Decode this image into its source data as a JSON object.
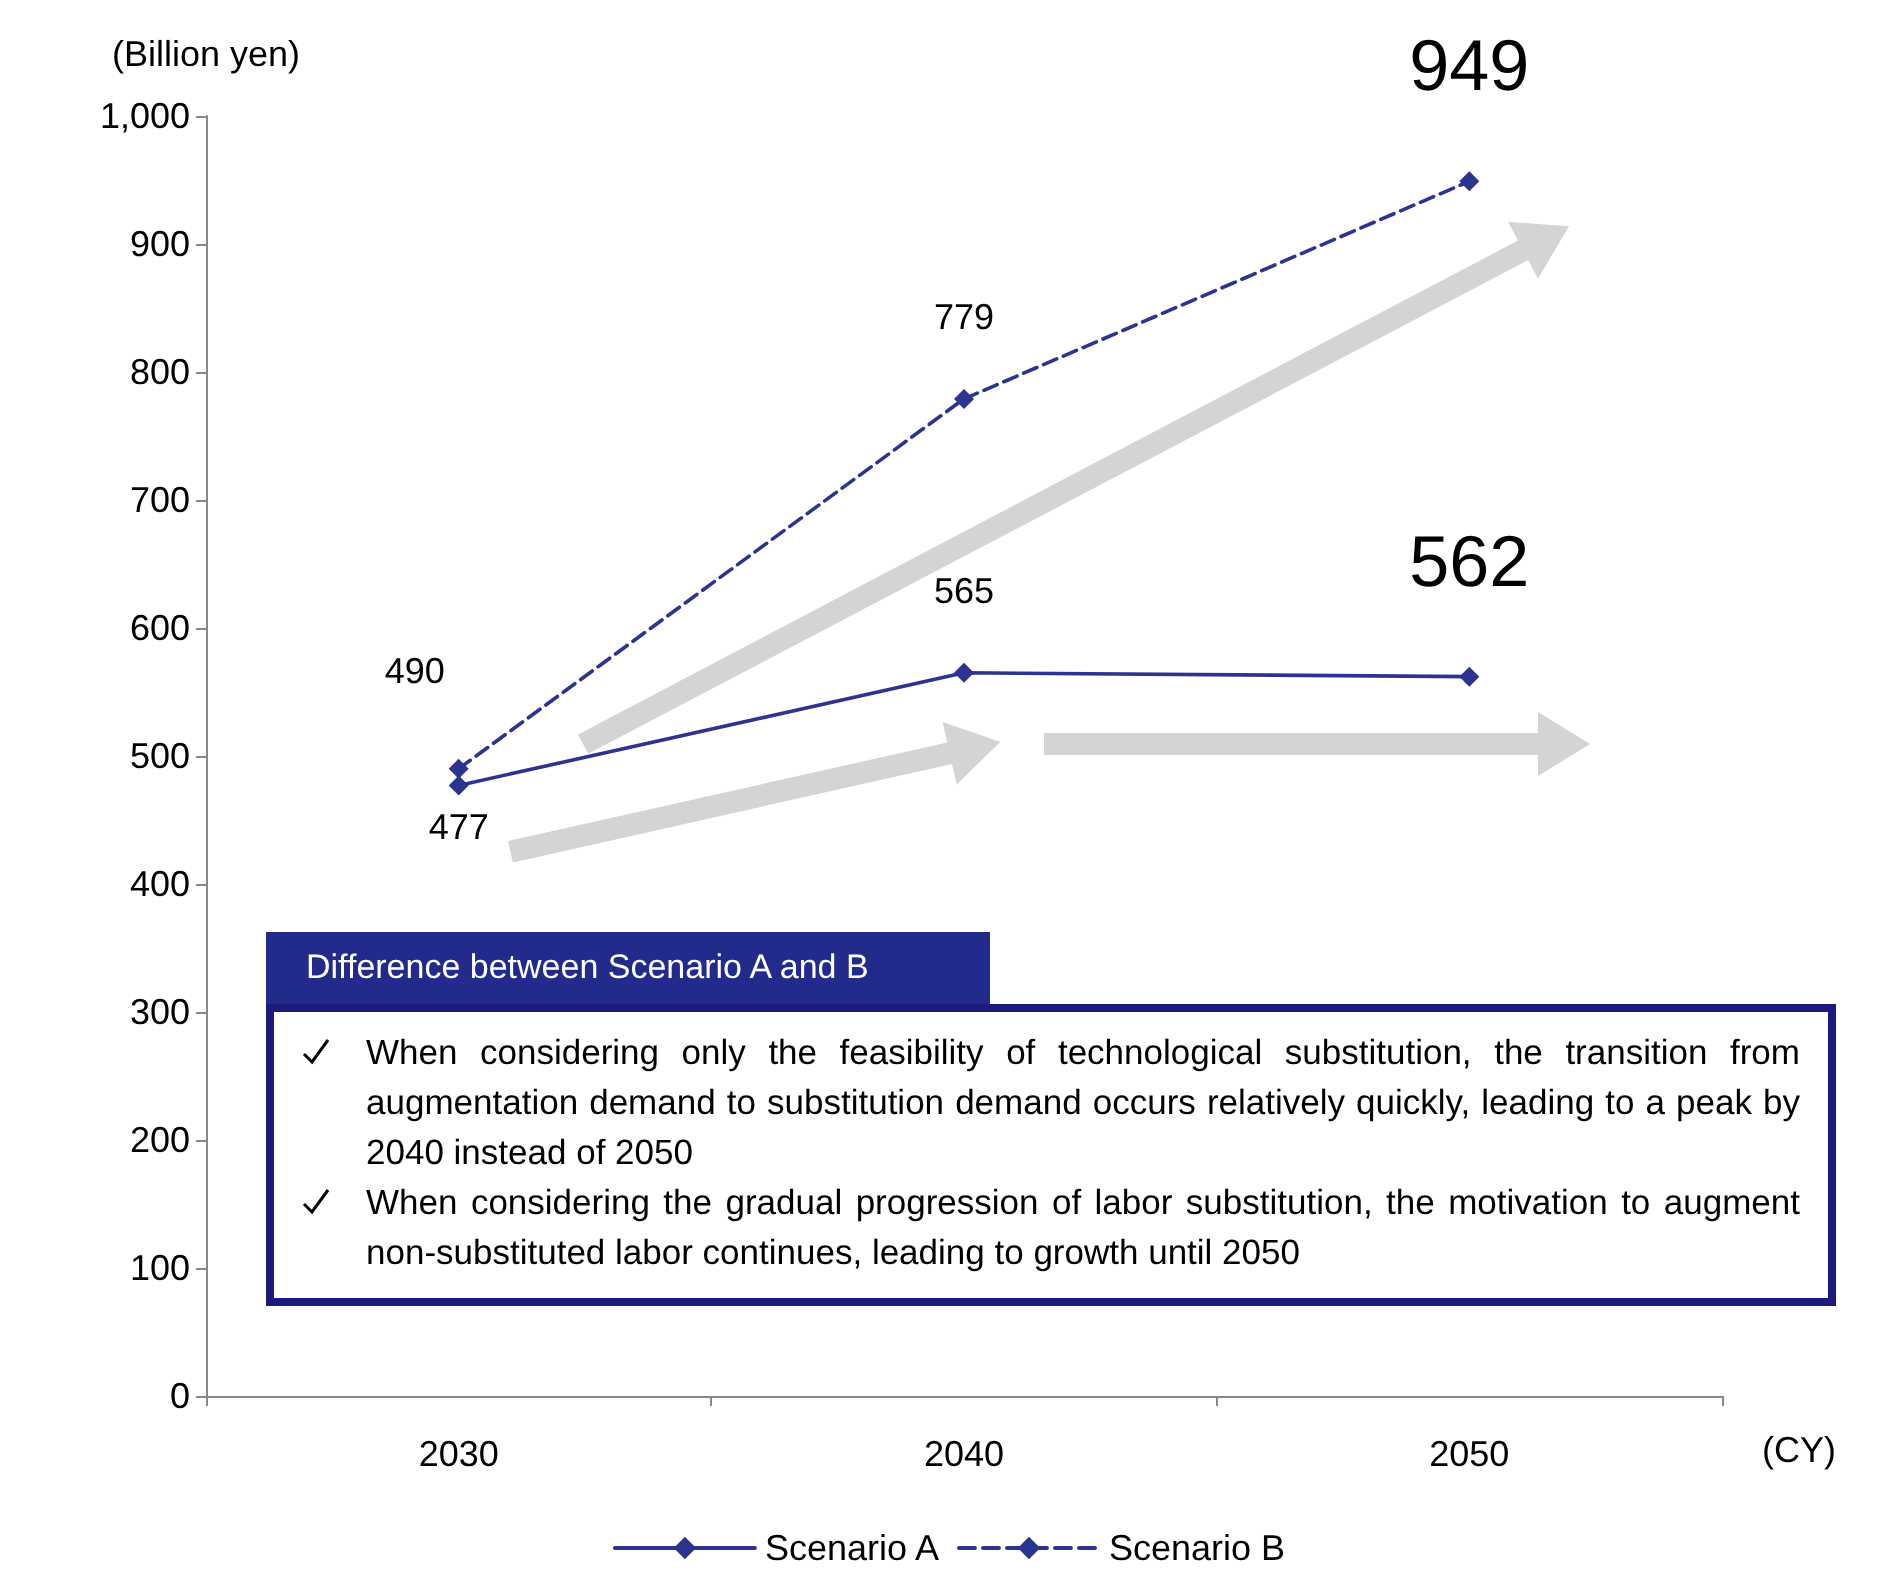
{
  "chart_data": {
    "type": "line",
    "ylabel": "(Billion yen)",
    "xlabel": "(CY)",
    "categories": [
      "2030",
      "2040",
      "2050"
    ],
    "series": [
      {
        "name": "Scenario A",
        "color": "#2b3590",
        "values": [
          477,
          565,
          562
        ],
        "line_style": "solid"
      },
      {
        "name": "Scenario B",
        "color": "#2b3590",
        "values": [
          490,
          779,
          949
        ],
        "line_style": "dashed"
      }
    ],
    "ylim": [
      0,
      1000
    ],
    "yticks": [
      0,
      100,
      200,
      300,
      400,
      500,
      600,
      700,
      800,
      900,
      {
        "value": 1000,
        "label": "1,000"
      }
    ],
    "grid": false,
    "legend": "bottom",
    "marker": "diamond",
    "data_labels": true,
    "annotations": [
      "Difference between Scenario A and B",
      "When considering only the feasibility of technological substitution, the transition from augmentation demand to substitution demand occurs relatively quickly, leading to a peak by 2040 instead of 2050",
      "When considering the gradual progression of labor substitution, the motivation to augment non-substituted labor continues, leading to growth until 2050"
    ]
  }
}
